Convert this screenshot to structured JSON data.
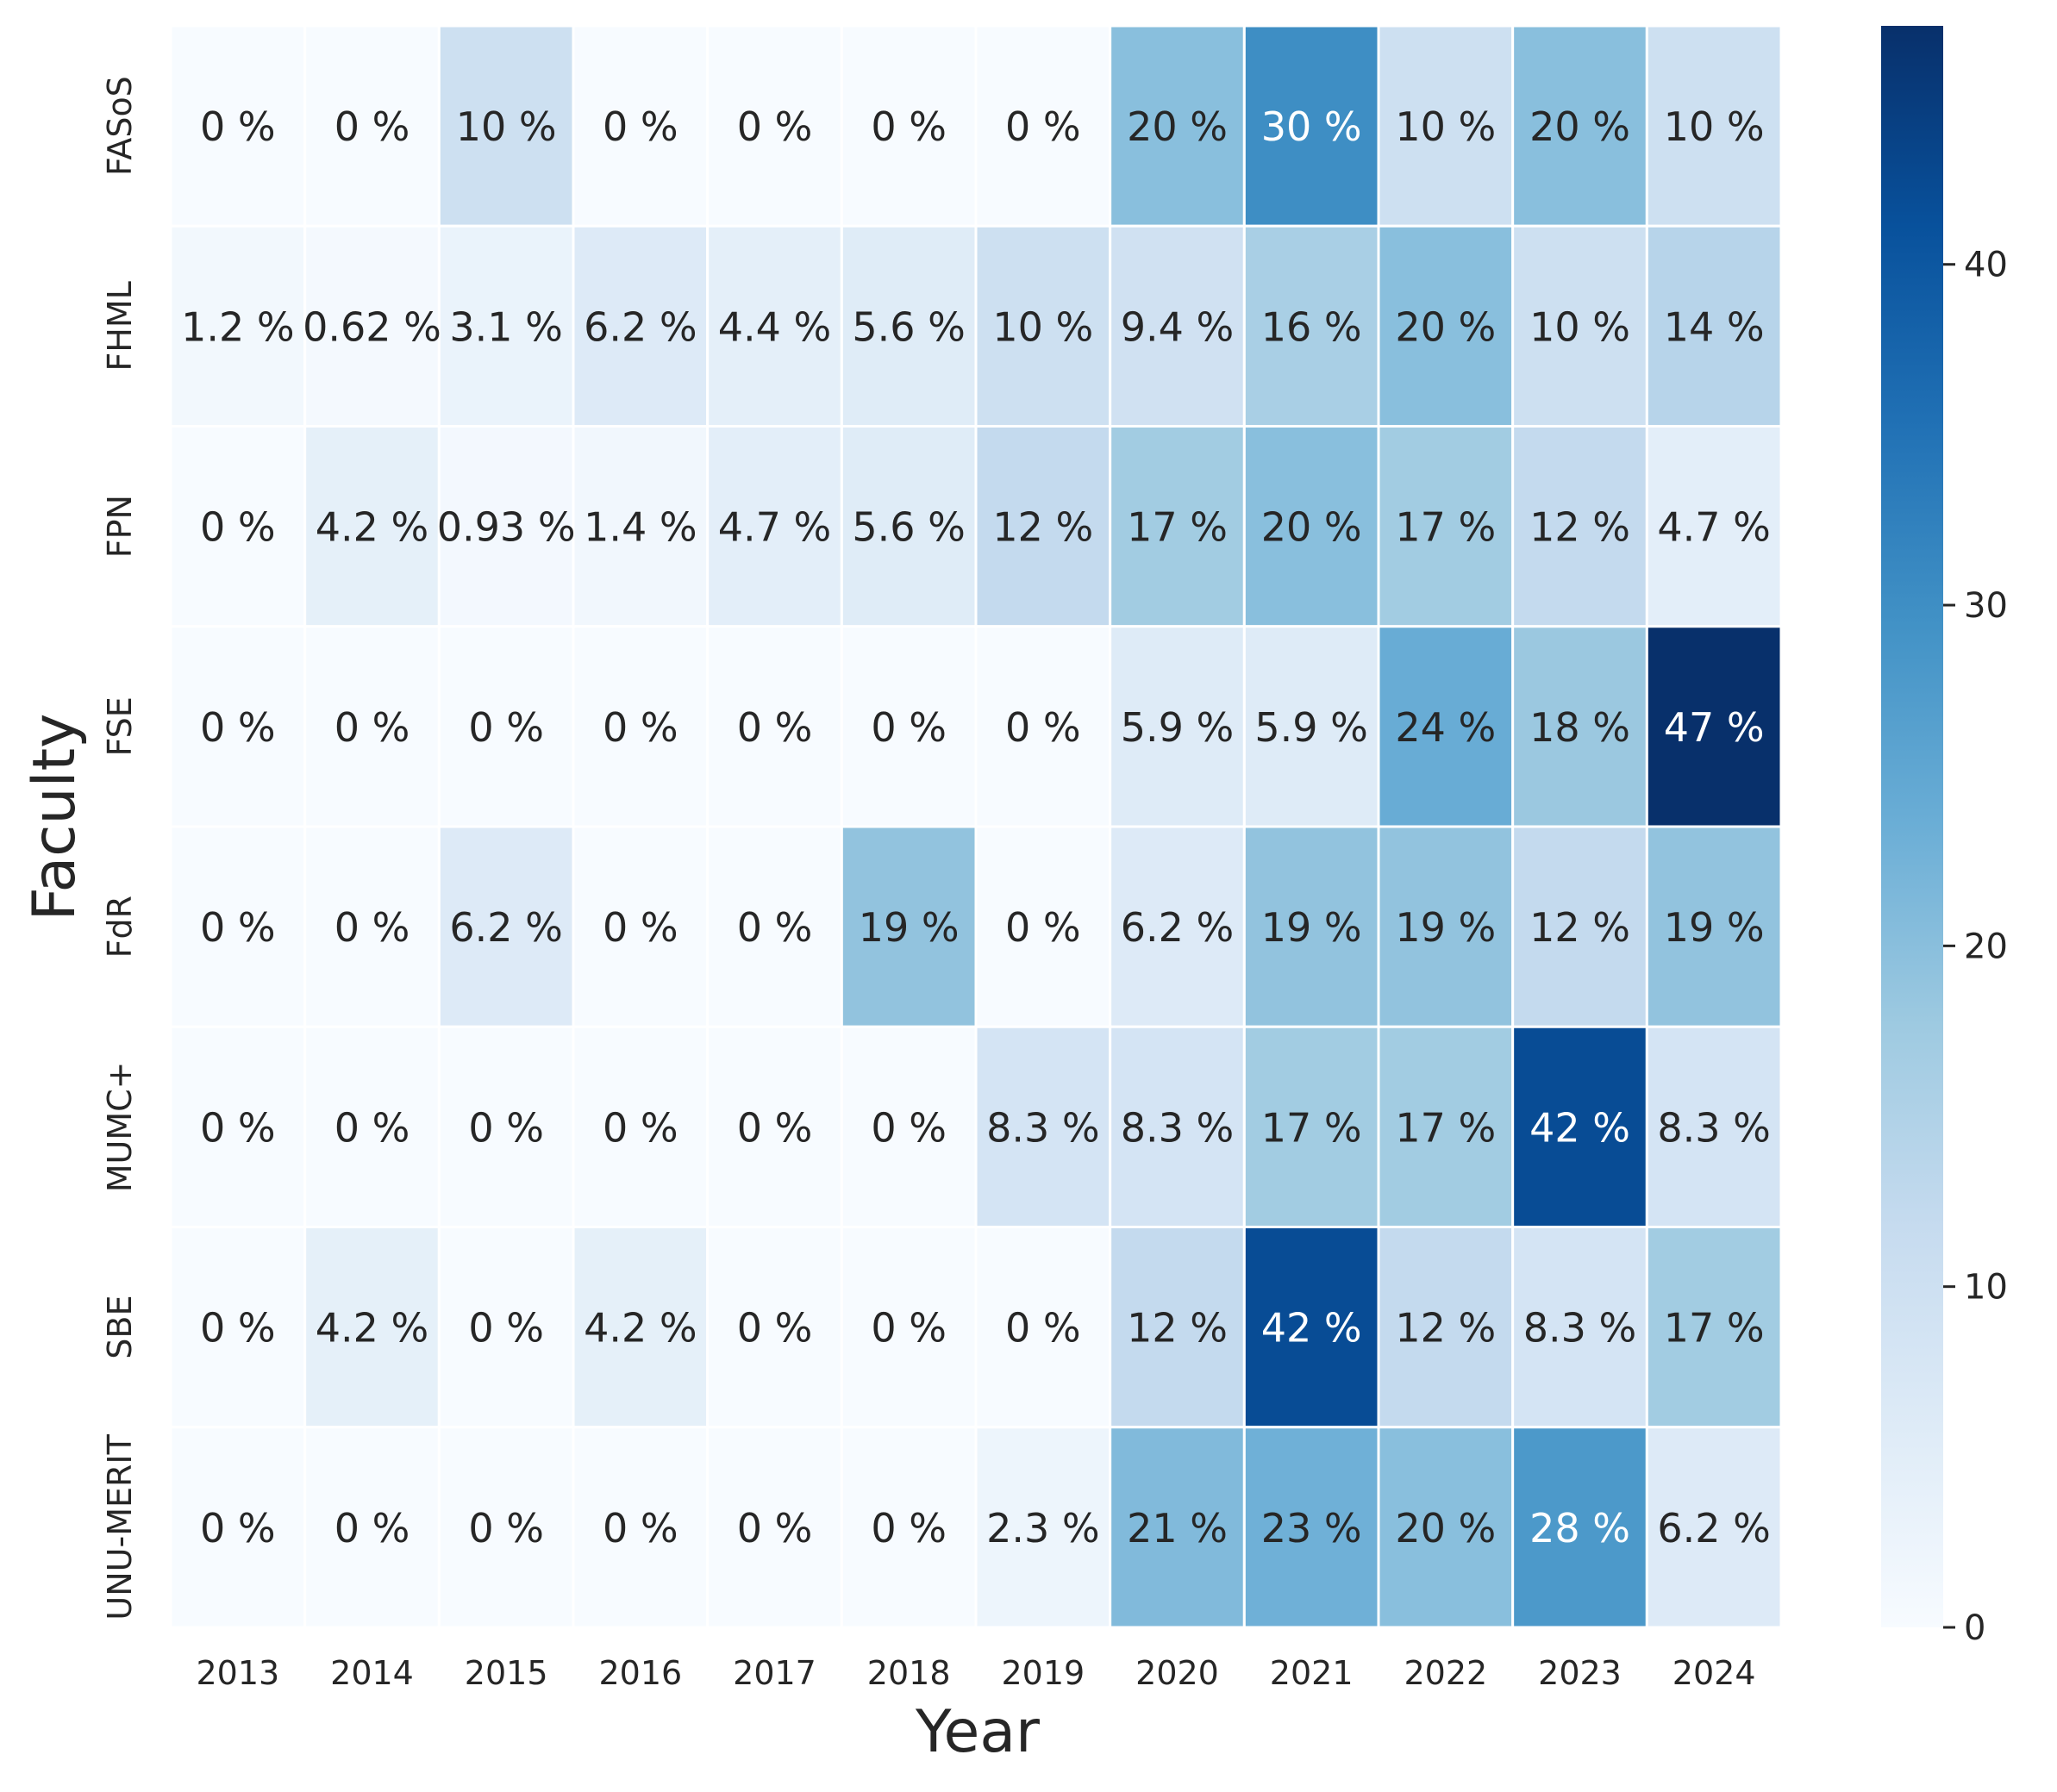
{
  "chart_data": {
    "type": "heatmap",
    "xlabel": "Year",
    "ylabel": "Faculty",
    "x_categories": [
      "2013",
      "2014",
      "2015",
      "2016",
      "2017",
      "2018",
      "2019",
      "2020",
      "2021",
      "2022",
      "2023",
      "2024"
    ],
    "y_categories": [
      "FASoS",
      "FHML",
      "FPN",
      "FSE",
      "FdR",
      "MUMC+",
      "SBE",
      "UNU-MERIT"
    ],
    "values": [
      [
        0,
        0,
        10,
        0,
        0,
        0,
        0,
        20,
        30,
        10,
        20,
        10
      ],
      [
        1.2,
        0.62,
        3.1,
        6.2,
        4.4,
        5.6,
        10,
        9.4,
        16,
        20,
        10,
        14
      ],
      [
        0,
        4.2,
        0.93,
        1.4,
        4.7,
        5.6,
        12,
        17,
        20,
        17,
        12,
        4.7
      ],
      [
        0,
        0,
        0,
        0,
        0,
        0,
        0,
        5.9,
        5.9,
        24,
        18,
        47
      ],
      [
        0,
        0,
        6.2,
        0,
        0,
        19,
        0,
        6.2,
        19,
        19,
        12,
        19
      ],
      [
        0,
        0,
        0,
        0,
        0,
        0,
        8.3,
        8.3,
        17,
        17,
        42,
        8.3
      ],
      [
        0,
        4.2,
        0,
        4.2,
        0,
        0,
        0,
        12,
        42,
        12,
        8.3,
        17
      ],
      [
        0,
        0,
        0,
        0,
        0,
        0,
        2.3,
        21,
        23,
        20,
        28,
        6.2
      ]
    ],
    "labels": [
      [
        "0 %",
        "0 %",
        "10 %",
        "0 %",
        "0 %",
        "0 %",
        "0 %",
        "20 %",
        "30 %",
        "10 %",
        "20 %",
        "10 %"
      ],
      [
        "1.2 %",
        "0.62 %",
        "3.1 %",
        "6.2 %",
        "4.4 %",
        "5.6 %",
        "10 %",
        "9.4 %",
        "16 %",
        "20 %",
        "10 %",
        "14 %"
      ],
      [
        "0 %",
        "4.2 %",
        "0.93 %",
        "1.4 %",
        "4.7 %",
        "5.6 %",
        "12 %",
        "17 %",
        "20 %",
        "17 %",
        "12 %",
        "4.7 %"
      ],
      [
        "0 %",
        "0 %",
        "0 %",
        "0 %",
        "0 %",
        "0 %",
        "0 %",
        "5.9 %",
        "5.9 %",
        "24 %",
        "18 %",
        "47 %"
      ],
      [
        "0 %",
        "0 %",
        "6.2 %",
        "0 %",
        "0 %",
        "19 %",
        "0 %",
        "6.2 %",
        "19 %",
        "19 %",
        "12 %",
        "19 %"
      ],
      [
        "0 %",
        "0 %",
        "0 %",
        "0 %",
        "0 %",
        "0 %",
        "8.3 %",
        "8.3 %",
        "17 %",
        "17 %",
        "42 %",
        "8.3 %"
      ],
      [
        "0 %",
        "4.2 %",
        "0 %",
        "4.2 %",
        "0 %",
        "0 %",
        "0 %",
        "12 %",
        "42 %",
        "12 %",
        "8.3 %",
        "17 %"
      ],
      [
        "0 %",
        "0 %",
        "0 %",
        "0 %",
        "0 %",
        "0 %",
        "2.3 %",
        "21 %",
        "23 %",
        "20 %",
        "28 %",
        "6.2 %"
      ]
    ],
    "colorbar": {
      "range": [
        0,
        47
      ],
      "ticks": [
        0,
        10,
        20,
        30,
        40
      ],
      "tick_labels": [
        "0",
        "10",
        "20",
        "30",
        "40"
      ],
      "colormap": "Blues",
      "colors": [
        "#f7fbff",
        "#deebf7",
        "#c6dbef",
        "#9ecae1",
        "#6baed6",
        "#4292c6",
        "#2171b5",
        "#08519c",
        "#08306b"
      ]
    },
    "grid": false,
    "legend": "colorbar on the right"
  }
}
